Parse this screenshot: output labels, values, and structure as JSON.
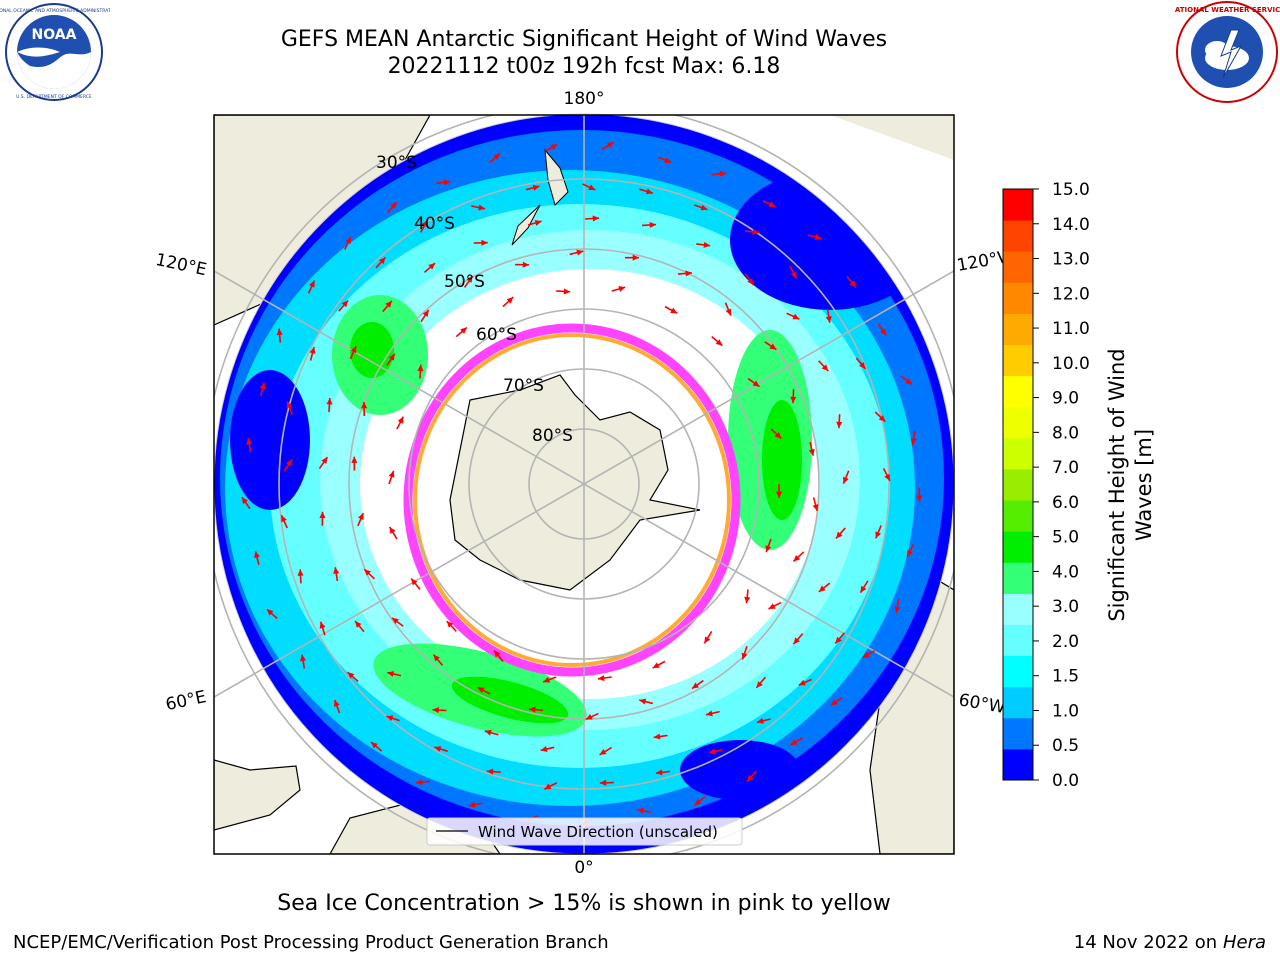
{
  "title_line1": "GEFS MEAN Antarctic Significant Height of Wind Waves",
  "title_line2": "20221112 t00z 192h fcst   Max: 6.18",
  "logos": {
    "left": {
      "name": "noaa-logo",
      "text": "NOAA",
      "ring_text": "NATIONAL OCEANIC AND ATMOSPHERIC ADMINISTRATION · U.S. DEPARTMENT OF COMMERCE"
    },
    "right": {
      "name": "nws-logo",
      "ring_text": "NATIONAL WEATHER SERVICE"
    }
  },
  "map": {
    "longitude_labels": {
      "top": "180°",
      "bottom": "0°",
      "upper_left": "120°E",
      "upper_right": "120°W",
      "lower_left": "60°E",
      "lower_right": "60°W"
    },
    "latitude_labels": [
      "30°S",
      "40°S",
      "50°S",
      "60°S",
      "70°S",
      "80°S"
    ],
    "legend_label": "Wind Wave Direction (unscaled)",
    "colors": {
      "land": "#eeecdc",
      "ice": "#ffffff",
      "graticule": "#b4b4b4",
      "arrow": "#ff0000"
    }
  },
  "colorbar": {
    "label": "Significant Height of Wind Waves [m]",
    "ticks": [
      "15.0",
      "14.0",
      "13.0",
      "12.0",
      "11.0",
      "10.0",
      "9.0",
      "8.0",
      "7.0",
      "6.0",
      "5.0",
      "4.0",
      "3.0",
      "2.0",
      "1.5",
      "1.0",
      "0.5",
      "0.0"
    ],
    "colors": [
      "#0000ff",
      "#0077ff",
      "#00ccff",
      "#00ffff",
      "#66ffff",
      "#99ffff",
      "#33ff77",
      "#00ee00",
      "#55ee00",
      "#99ee00",
      "#ccff00",
      "#eeff00",
      "#ffff00",
      "#ffcc00",
      "#ffaa00",
      "#ff8800",
      "#ff6600",
      "#ff4400",
      "#ff0000"
    ]
  },
  "caption": "Sea Ice Concentration > 15% is shown in pink to yellow",
  "footer_left": "NCEP/EMC/Verification Post Processing Product Generation Branch",
  "footer_date": "14 Nov 2022 on",
  "footer_machine": "Hera"
}
